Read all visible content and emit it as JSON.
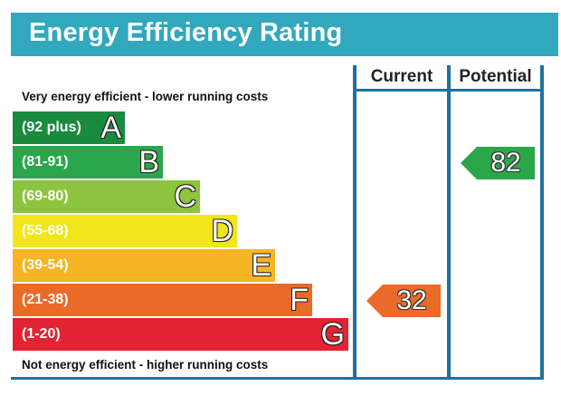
{
  "header": {
    "title": "Energy Efficiency Rating"
  },
  "columns": {
    "current": "Current",
    "potential": "Potential"
  },
  "captions": {
    "top": "Very energy efficient - lower running costs",
    "bottom": "Not energy efficient - higher running costs"
  },
  "chart_data": {
    "type": "bar",
    "categories": [
      "A",
      "B",
      "C",
      "D",
      "E",
      "F",
      "G"
    ],
    "ranges": [
      "(92 plus)",
      "(81-91)",
      "(69-80)",
      "(55-68)",
      "(39-54)",
      "(21-38)",
      "(1-20)"
    ],
    "colors": [
      "#1a8a3f",
      "#2aa64b",
      "#8cc43f",
      "#f1e619",
      "#f7b423",
      "#ec6a27",
      "#e32332"
    ],
    "current": {
      "value": 32,
      "band": "F",
      "color": "#ec6a27"
    },
    "potential": {
      "value": 82,
      "band": "B",
      "color": "#2aa64b"
    }
  }
}
